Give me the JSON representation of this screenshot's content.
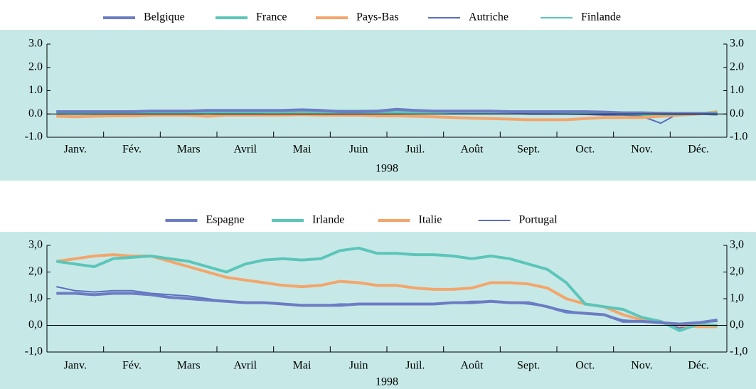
{
  "chart_data": [
    {
      "type": "line",
      "categories": [
        null,
        "Janv.",
        null,
        null,
        "Fév.",
        null,
        null,
        "Mars",
        null,
        null,
        "Avril",
        null,
        null,
        "Mai",
        null,
        null,
        "Juin",
        null,
        null,
        "Juil.",
        null,
        null,
        "Août",
        null,
        null,
        "Sept.",
        null,
        null,
        "Oct.",
        null,
        null,
        "Nov.",
        null,
        null,
        "Déc.",
        null
      ],
      "xlabel": "1998",
      "ylim": [
        -1,
        3
      ],
      "yticks": [
        {
          "value": -1,
          "label": "-1.0"
        },
        {
          "value": 0,
          "label": "0.0"
        },
        {
          "value": 1,
          "label": "1.0"
        },
        {
          "value": 2,
          "label": "2.0"
        },
        {
          "value": 3,
          "label": "3.0"
        }
      ],
      "series": [
        {
          "name": "Belgique",
          "color": "#6c7cc4",
          "values": [
            0.1,
            0.1,
            0.1,
            0.1,
            0.1,
            0.12,
            0.12,
            0.12,
            0.15,
            0.15,
            0.15,
            0.15,
            0.15,
            0.18,
            0.15,
            0.1,
            0.1,
            0.12,
            0.2,
            0.15,
            0.12,
            0.12,
            0.12,
            0.12,
            0.1,
            0.1,
            0.1,
            0.1,
            0.1,
            0.08,
            0.05,
            0.05,
            0.03,
            0.02,
            0.02,
            0.0
          ]
        },
        {
          "name": "France",
          "color": "#5cc5b9",
          "values": [
            0.05,
            0.05,
            0.05,
            0.05,
            0.05,
            0.05,
            0.05,
            0.05,
            0.05,
            0.05,
            0.05,
            0.08,
            0.1,
            0.1,
            0.12,
            0.12,
            0.12,
            0.12,
            0.1,
            0.1,
            0.1,
            0.1,
            0.1,
            0.1,
            0.1,
            0.1,
            0.1,
            0.08,
            0.05,
            0.05,
            0.02,
            0.02,
            0.0,
            0.0,
            0.02,
            0.05
          ]
        },
        {
          "name": "Pays-Bas",
          "color": "#f4a56b",
          "values": [
            -0.1,
            -0.12,
            -0.1,
            -0.08,
            -0.08,
            -0.05,
            -0.05,
            -0.05,
            -0.1,
            -0.05,
            -0.05,
            -0.05,
            -0.05,
            -0.03,
            -0.05,
            -0.05,
            -0.05,
            -0.08,
            -0.08,
            -0.1,
            -0.12,
            -0.15,
            -0.18,
            -0.2,
            -0.22,
            -0.25,
            -0.25,
            -0.25,
            -0.2,
            -0.15,
            -0.15,
            -0.15,
            -0.1,
            -0.05,
            0.0,
            0.1
          ]
        },
        {
          "name": "Autriche",
          "color": "#5a6fc0",
          "values": [
            0.12,
            0.12,
            0.1,
            0.1,
            0.1,
            0.1,
            0.1,
            0.12,
            0.12,
            0.1,
            0.1,
            0.1,
            0.1,
            0.12,
            0.1,
            0.1,
            0.08,
            0.08,
            0.08,
            0.08,
            0.08,
            0.05,
            0.05,
            0.05,
            0.05,
            0.0,
            0.0,
            0.0,
            -0.02,
            -0.05,
            -0.05,
            -0.1,
            -0.4,
            0.05,
            0.05,
            0.05
          ]
        },
        {
          "name": "Finlande",
          "color": "#5cc5b9",
          "values": [
            0.0,
            0.0,
            0.0,
            0.02,
            0.02,
            0.02,
            0.05,
            0.05,
            0.05,
            0.05,
            0.05,
            0.05,
            0.05,
            0.05,
            0.05,
            0.05,
            0.05,
            0.05,
            0.05,
            0.05,
            0.05,
            0.05,
            0.05,
            0.05,
            0.05,
            0.05,
            0.05,
            0.05,
            0.0,
            0.0,
            0.0,
            -0.05,
            -0.1,
            0.0,
            0.0,
            -0.05
          ]
        }
      ]
    },
    {
      "type": "line",
      "categories": [
        null,
        "Janv.",
        null,
        null,
        "Fév.",
        null,
        null,
        "Mars",
        null,
        null,
        "Avril",
        null,
        null,
        "Mai",
        null,
        null,
        "Juin",
        null,
        null,
        "Juil.",
        null,
        null,
        "Août",
        null,
        null,
        "Sept.",
        null,
        null,
        "Oct.",
        null,
        null,
        "Nov.",
        null,
        null,
        "Déc.",
        null
      ],
      "xlabel": "1998",
      "ylim": [
        -1,
        3
      ],
      "yticks": [
        {
          "value": -1,
          "label": "-1,0"
        },
        {
          "value": 0,
          "label": "0,0"
        },
        {
          "value": 1,
          "label": "1,0"
        },
        {
          "value": 2,
          "label": "2,0"
        },
        {
          "value": 3,
          "label": "3,0"
        }
      ],
      "series": [
        {
          "name": "Espagne",
          "color": "#6c7cc4",
          "values": [
            1.2,
            1.2,
            1.15,
            1.2,
            1.2,
            1.15,
            1.05,
            1.0,
            0.95,
            0.9,
            0.85,
            0.85,
            0.8,
            0.75,
            0.75,
            0.75,
            0.8,
            0.8,
            0.8,
            0.8,
            0.8,
            0.85,
            0.85,
            0.9,
            0.85,
            0.85,
            0.7,
            0.5,
            0.45,
            0.4,
            0.15,
            0.15,
            0.1,
            0.05,
            0.1,
            0.2
          ]
        },
        {
          "name": "Irlande",
          "color": "#5cc5b9",
          "values": [
            2.4,
            2.3,
            2.2,
            2.5,
            2.55,
            2.6,
            2.5,
            2.4,
            2.2,
            2.0,
            2.3,
            2.45,
            2.5,
            2.45,
            2.5,
            2.8,
            2.9,
            2.7,
            2.7,
            2.65,
            2.65,
            2.6,
            2.5,
            2.6,
            2.5,
            2.3,
            2.1,
            1.6,
            0.8,
            0.7,
            0.6,
            0.3,
            0.15,
            -0.2,
            0.05,
            0.0
          ]
        },
        {
          "name": "Italie",
          "color": "#f4a56b",
          "values": [
            2.4,
            2.5,
            2.6,
            2.65,
            2.6,
            2.6,
            2.4,
            2.2,
            2.0,
            1.8,
            1.7,
            1.6,
            1.5,
            1.45,
            1.5,
            1.65,
            1.6,
            1.5,
            1.5,
            1.4,
            1.35,
            1.35,
            1.4,
            1.6,
            1.6,
            1.55,
            1.4,
            1.0,
            0.8,
            0.7,
            0.4,
            0.2,
            0.1,
            0.0,
            -0.05,
            -0.05
          ]
        },
        {
          "name": "Portugal",
          "color": "#5a6fc0",
          "values": [
            1.45,
            1.3,
            1.25,
            1.3,
            1.3,
            1.2,
            1.15,
            1.1,
            1.0,
            0.9,
            0.85,
            0.85,
            0.8,
            0.75,
            0.75,
            0.8,
            0.8,
            0.8,
            0.8,
            0.8,
            0.8,
            0.85,
            0.9,
            0.9,
            0.85,
            0.8,
            0.7,
            0.55,
            0.45,
            0.4,
            0.2,
            0.15,
            0.1,
            -0.1,
            0.1,
            0.15
          ]
        }
      ]
    }
  ]
}
